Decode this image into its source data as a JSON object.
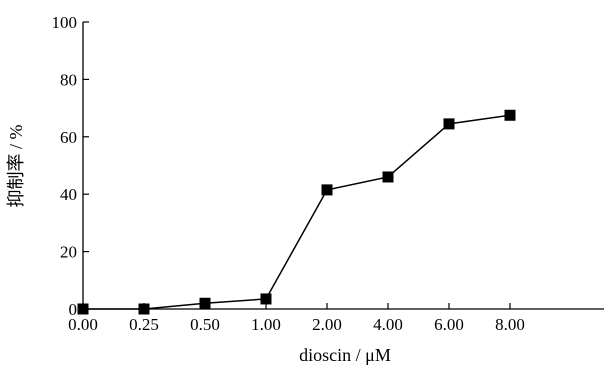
{
  "chart_data": {
    "type": "line",
    "title": "",
    "xlabel": "dioscin / μM",
    "ylabel": "抑制率 / %",
    "categories": [
      "0.00",
      "0.25",
      "0.50",
      "1.00",
      "2.00",
      "4.00",
      "6.00",
      "8.00"
    ],
    "y_ticks": [
      "0",
      "20",
      "40",
      "60",
      "80",
      "100"
    ],
    "ylim": [
      0,
      100
    ],
    "grid": false,
    "legend": "none",
    "series": [
      {
        "values": [
          0,
          0,
          2,
          3.5,
          41.5,
          46,
          64.5,
          67.5
        ],
        "marker": "square",
        "color": "#000000"
      }
    ]
  }
}
